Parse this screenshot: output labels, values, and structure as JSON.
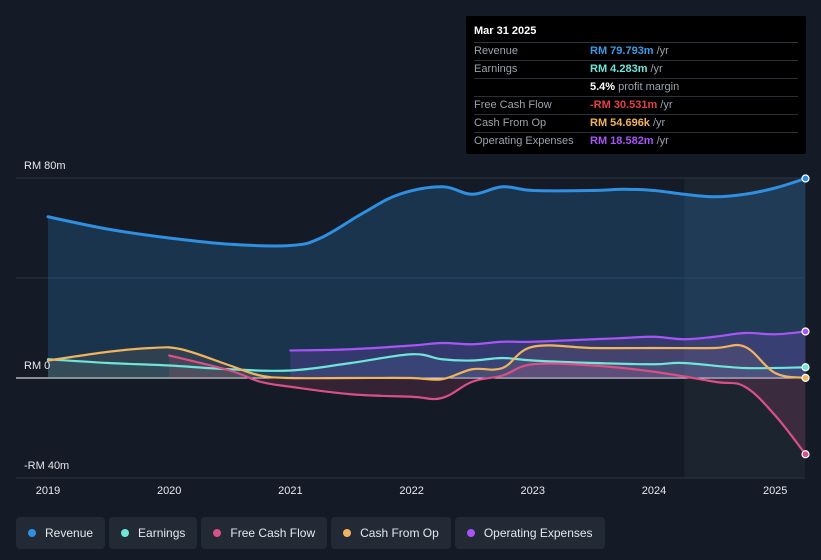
{
  "tooltip": {
    "date": "Mar 31 2025",
    "rows": [
      {
        "label": "Revenue",
        "value": "RM 79.793m",
        "unit": "/yr",
        "color": "#3b9be8"
      },
      {
        "label": "Earnings",
        "value": "RM 4.283m",
        "unit": "/yr",
        "color": "#6ee6d9"
      },
      {
        "label": "",
        "value": "5.4%",
        "unit": "profit margin",
        "color": "#ffffff"
      },
      {
        "label": "Free Cash Flow",
        "value": "-RM 30.531m",
        "unit": "/yr",
        "color": "#e5404a"
      },
      {
        "label": "Cash From Op",
        "value": "RM 54.696k",
        "unit": "/yr",
        "color": "#f0b35e"
      },
      {
        "label": "Operating Expenses",
        "value": "RM 18.582m",
        "unit": "/yr",
        "color": "#a855f7"
      }
    ]
  },
  "legend": [
    {
      "label": "Revenue",
      "color": "#2f8fe0"
    },
    {
      "label": "Earnings",
      "color": "#6ee6d9"
    },
    {
      "label": "Free Cash Flow",
      "color": "#d94f86"
    },
    {
      "label": "Cash From Op",
      "color": "#f0b35e"
    },
    {
      "label": "Operating Expenses",
      "color": "#a855f7"
    }
  ],
  "chart_data": {
    "type": "line",
    "title": "",
    "xlabel": "",
    "ylabel": "",
    "ylim": [
      -40,
      80
    ],
    "y_tick_labels": [
      {
        "value": 80,
        "label": "RM 80m"
      },
      {
        "value": 0,
        "label": "RM 0"
      },
      {
        "value": -40,
        "label": "-RM 40m"
      }
    ],
    "x_tick_labels": [
      {
        "value": 2019,
        "label": "2019"
      },
      {
        "value": 2020,
        "label": "2020"
      },
      {
        "value": 2021,
        "label": "2021"
      },
      {
        "value": 2022,
        "label": "2022"
      },
      {
        "value": 2023,
        "label": "2023"
      },
      {
        "value": 2024,
        "label": "2024"
      },
      {
        "value": 2025,
        "label": "2025"
      }
    ],
    "highlight_start": 2024.25,
    "series": [
      {
        "name": "Revenue",
        "color": "#2f8fe0",
        "fill": true,
        "x": [
          2019.0,
          2019.5,
          2020.0,
          2020.5,
          2021.0,
          2021.25,
          2021.6,
          2021.9,
          2022.25,
          2022.5,
          2022.75,
          2023.0,
          2023.5,
          2023.75,
          2024.0,
          2024.25,
          2024.5,
          2024.75,
          2025.0,
          2025.25
        ],
        "y": [
          64.5,
          59.5,
          56.0,
          53.5,
          53.0,
          56.0,
          66.0,
          73.5,
          76.5,
          73.5,
          76.5,
          75.0,
          75.0,
          75.5,
          75.0,
          73.5,
          72.5,
          73.5,
          76.0,
          79.8
        ]
      },
      {
        "name": "Earnings",
        "color": "#6ee6d9",
        "x": [
          2019.0,
          2019.5,
          2020.0,
          2020.5,
          2021.0,
          2021.5,
          2022.0,
          2022.25,
          2022.5,
          2022.75,
          2023.0,
          2023.5,
          2024.0,
          2024.25,
          2024.75,
          2025.25
        ],
        "y": [
          7.5,
          6.0,
          5.0,
          3.5,
          3.0,
          6.0,
          9.5,
          7.5,
          7.0,
          8.0,
          7.0,
          6.0,
          5.5,
          6.0,
          4.0,
          4.3
        ]
      },
      {
        "name": "Free Cash Flow",
        "color": "#d94f86",
        "x": [
          2020.0,
          2020.5,
          2020.75,
          2021.0,
          2021.5,
          2022.0,
          2022.25,
          2022.5,
          2022.75,
          2023.0,
          2023.5,
          2024.0,
          2024.5,
          2024.75,
          2025.0,
          2025.25
        ],
        "y": [
          9.0,
          3.0,
          -1.5,
          -3.5,
          -6.5,
          -7.5,
          -8.0,
          -1.5,
          1.0,
          5.5,
          5.0,
          2.5,
          -1.5,
          -3.5,
          -15.0,
          -30.5
        ]
      },
      {
        "name": "Cash From Op",
        "color": "#f0b35e",
        "x": [
          2019.0,
          2019.5,
          2019.85,
          2020.1,
          2020.5,
          2020.75,
          2021.0,
          2021.5,
          2022.0,
          2022.25,
          2022.5,
          2022.75,
          2023.0,
          2023.5,
          2024.0,
          2024.5,
          2024.75,
          2025.0,
          2025.25
        ],
        "y": [
          7.0,
          10.5,
          12.0,
          11.5,
          5.0,
          1.0,
          0.0,
          0.0,
          0.0,
          -0.5,
          3.5,
          4.0,
          12.5,
          12.0,
          12.0,
          12.0,
          12.5,
          2.0,
          0.05
        ]
      },
      {
        "name": "Operating Expenses",
        "color": "#a855f7",
        "fill": true,
        "x": [
          2021.0,
          2021.5,
          2022.0,
          2022.25,
          2022.5,
          2022.75,
          2023.0,
          2023.5,
          2023.75,
          2024.0,
          2024.25,
          2024.5,
          2024.75,
          2025.0,
          2025.25
        ],
        "y": [
          11.0,
          11.5,
          13.0,
          14.0,
          13.5,
          14.5,
          14.5,
          15.5,
          16.0,
          16.5,
          15.5,
          16.5,
          18.0,
          17.5,
          18.6
        ]
      }
    ]
  }
}
